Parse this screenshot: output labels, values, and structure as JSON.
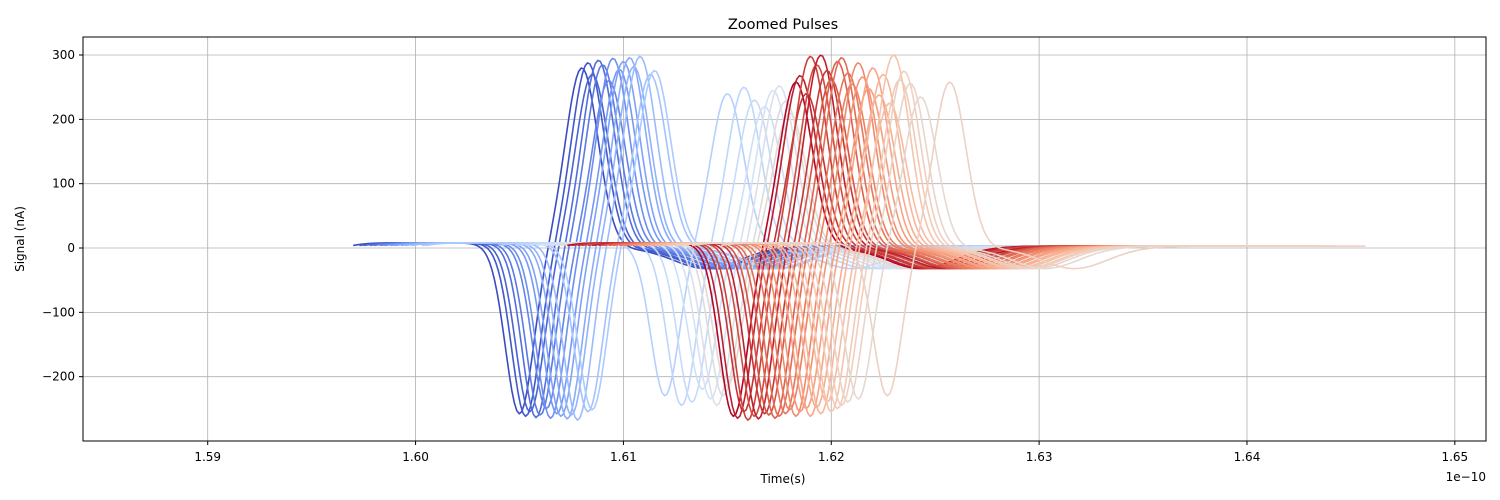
{
  "chart_data": {
    "type": "line",
    "title": "Zoomed Pulses",
    "xlabel": "Time(s)",
    "ylabel": "Signal (nA)",
    "x_offset_label": "1e−10",
    "xlim": [
      1.584,
      1.6515
    ],
    "ylim": [
      -300,
      328
    ],
    "grid": true,
    "colormap": "coolwarm",
    "x_ticks": [
      1.59,
      1.6,
      1.61,
      1.62,
      1.63,
      1.64,
      1.65
    ],
    "x_tick_labels": [
      "1.59",
      "1.60",
      "1.61",
      "1.62",
      "1.63",
      "1.64",
      "1.65"
    ],
    "y_ticks": [
      300,
      200,
      100,
      0,
      -100,
      -200
    ],
    "y_tick_labels": [
      "300",
      "200",
      "100",
      "0",
      "−100",
      "−200"
    ],
    "pulse_shape": {
      "description": "bipolar pulse: negative lobe, steep rise, positive lobe, small undershoot",
      "t_min_after_start": 0.0,
      "t_neg_peak": 0.0075,
      "t_pos_peak": 0.0115,
      "t_undershoot": 0.018,
      "t_end": 0.0255
    },
    "series": [
      {
        "t0": 1.597,
        "t_zero": 1.6065,
        "t_end": 1.628,
        "peak": 280,
        "trough": -258,
        "color": "#3b4cc0"
      },
      {
        "t0": 1.5973,
        "t_zero": 1.6068,
        "t_end": 1.6283,
        "peak": 288,
        "trough": -262,
        "color": "#4257c9"
      },
      {
        "t0": 1.5975,
        "t_zero": 1.607,
        "t_end": 1.6285,
        "peak": 270,
        "trough": -255,
        "color": "#4a63d3"
      },
      {
        "t0": 1.5978,
        "t_zero": 1.6073,
        "t_end": 1.6288,
        "peak": 292,
        "trough": -264,
        "color": "#536edb"
      },
      {
        "t0": 1.598,
        "t_zero": 1.6075,
        "t_end": 1.629,
        "peak": 285,
        "trough": -260,
        "color": "#5b7ae2"
      },
      {
        "t0": 1.5983,
        "t_zero": 1.6078,
        "t_end": 1.6293,
        "peak": 260,
        "trough": -250,
        "color": "#6485e8"
      },
      {
        "t0": 1.5985,
        "t_zero": 1.608,
        "t_end": 1.6295,
        "peak": 295,
        "trough": -265,
        "color": "#6c8ff1"
      },
      {
        "t0": 1.5988,
        "t_zero": 1.6083,
        "t_end": 1.6298,
        "peak": 278,
        "trough": -258,
        "color": "#7599f4"
      },
      {
        "t0": 1.599,
        "t_zero": 1.6085,
        "t_end": 1.63,
        "peak": 290,
        "trough": -262,
        "color": "#7ea3f7"
      },
      {
        "t0": 1.5993,
        "t_zero": 1.6088,
        "t_end": 1.6303,
        "peak": 296,
        "trough": -266,
        "color": "#88abfa"
      },
      {
        "t0": 1.5995,
        "t_zero": 1.609,
        "t_end": 1.6305,
        "peak": 282,
        "trough": -260,
        "color": "#91b3fc"
      },
      {
        "t0": 1.5998,
        "t_zero": 1.6093,
        "t_end": 1.6308,
        "peak": 298,
        "trough": -268,
        "color": "#9abbfd"
      },
      {
        "t0": 1.6003,
        "t_zero": 1.6098,
        "t_end": 1.6313,
        "peak": 270,
        "trough": -255,
        "color": "#a3c2fe"
      },
      {
        "t0": 1.6005,
        "t_zero": 1.61,
        "t_end": 1.6315,
        "peak": 276,
        "trough": -252,
        "color": "#accaff"
      },
      {
        "t0": 1.604,
        "t_zero": 1.6135,
        "t_end": 1.635,
        "peak": 240,
        "trough": -230,
        "color": "#b5d0ff"
      },
      {
        "t0": 1.6048,
        "t_zero": 1.6143,
        "t_end": 1.6358,
        "peak": 250,
        "trough": -245,
        "color": "#bed6fd"
      },
      {
        "t0": 1.6053,
        "t_zero": 1.6148,
        "t_end": 1.6363,
        "peak": 230,
        "trough": -240,
        "color": "#c6dbfb"
      },
      {
        "t0": 1.6058,
        "t_zero": 1.6153,
        "t_end": 1.6368,
        "peak": 220,
        "trough": -220,
        "color": "#cedff8"
      },
      {
        "t0": 1.6062,
        "t_zero": 1.6157,
        "t_end": 1.6372,
        "peak": 245,
        "trough": -235,
        "color": "#d5e2f4"
      },
      {
        "t0": 1.6065,
        "t_zero": 1.616,
        "t_end": 1.6375,
        "peak": 252,
        "trough": -245,
        "color": "#dbe0e8"
      },
      {
        "t0": 1.6068,
        "t_zero": 1.6163,
        "t_end": 1.6378,
        "peak": 228,
        "trough": -230,
        "color": "#dcdcdc"
      },
      {
        "t0": 1.607,
        "t_zero": 1.6165,
        "t_end": 1.638,
        "peak": 210,
        "trough": -215,
        "color": "#e2d9d4"
      },
      {
        "t0": 1.6073,
        "t_zero": 1.6168,
        "t_end": 1.6383,
        "peak": 258,
        "trough": -262,
        "color": "#b40426"
      },
      {
        "t0": 1.6075,
        "t_zero": 1.617,
        "t_end": 1.6385,
        "peak": 268,
        "trough": -265,
        "color": "#be1e2d"
      },
      {
        "t0": 1.6078,
        "t_zero": 1.6173,
        "t_end": 1.6388,
        "peak": 240,
        "trough": -255,
        "color": "#c53334"
      },
      {
        "t0": 1.608,
        "t_zero": 1.6175,
        "t_end": 1.639,
        "peak": 298,
        "trough": -268,
        "color": "#cc403a"
      },
      {
        "t0": 1.6083,
        "t_zero": 1.6178,
        "t_end": 1.6393,
        "peak": 285,
        "trough": -262,
        "color": "#d24b40"
      },
      {
        "t0": 1.6085,
        "t_zero": 1.618,
        "t_end": 1.6395,
        "peak": 300,
        "trough": -266,
        "color": "#bd1f2d"
      },
      {
        "t0": 1.6088,
        "t_zero": 1.6183,
        "t_end": 1.6398,
        "peak": 276,
        "trough": -258,
        "color": "#c83837"
      },
      {
        "t0": 1.609,
        "t_zero": 1.6185,
        "t_end": 1.64,
        "peak": 262,
        "trough": -260,
        "color": "#d75445"
      },
      {
        "t0": 1.6093,
        "t_zero": 1.6188,
        "t_end": 1.6403,
        "peak": 290,
        "trough": -265,
        "color": "#de614d"
      },
      {
        "t0": 1.6095,
        "t_zero": 1.619,
        "t_end": 1.6405,
        "peak": 296,
        "trough": -262,
        "color": "#e36c55"
      },
      {
        "t0": 1.6098,
        "t_zero": 1.6193,
        "t_end": 1.6408,
        "peak": 272,
        "trough": -258,
        "color": "#e8765c"
      },
      {
        "t0": 1.61,
        "t_zero": 1.6195,
        "t_end": 1.641,
        "peak": 255,
        "trough": -252,
        "color": "#ec8064"
      },
      {
        "t0": 1.6103,
        "t_zero": 1.6198,
        "t_end": 1.6413,
        "peak": 288,
        "trough": -262,
        "color": "#f08a6c"
      },
      {
        "t0": 1.6105,
        "t_zero": 1.62,
        "t_end": 1.6415,
        "peak": 266,
        "trough": -255,
        "color": "#f39475"
      },
      {
        "t0": 1.6108,
        "t_zero": 1.6203,
        "t_end": 1.6418,
        "peak": 248,
        "trough": -250,
        "color": "#f59d7e"
      },
      {
        "t0": 1.611,
        "t_zero": 1.6205,
        "t_end": 1.642,
        "peak": 280,
        "trough": -262,
        "color": "#f6a586"
      },
      {
        "t0": 1.6113,
        "t_zero": 1.6208,
        "t_end": 1.6423,
        "peak": 238,
        "trough": -248,
        "color": "#f7ad90"
      },
      {
        "t0": 1.6115,
        "t_zero": 1.621,
        "t_end": 1.6425,
        "peak": 270,
        "trough": -258,
        "color": "#f7b599"
      },
      {
        "t0": 1.6118,
        "t_zero": 1.6213,
        "t_end": 1.6428,
        "peak": 225,
        "trough": -240,
        "color": "#f6bda2"
      },
      {
        "t0": 1.612,
        "t_zero": 1.6215,
        "t_end": 1.643,
        "peak": 300,
        "trough": -255,
        "color": "#f5c4ac"
      },
      {
        "t0": 1.6123,
        "t_zero": 1.6218,
        "t_end": 1.6433,
        "peak": 262,
        "trough": -250,
        "color": "#f2cab5"
      },
      {
        "t0": 1.6125,
        "t_zero": 1.622,
        "t_end": 1.6435,
        "peak": 275,
        "trough": -245,
        "color": "#efcfbf"
      },
      {
        "t0": 1.6128,
        "t_zero": 1.6223,
        "t_end": 1.6438,
        "peak": 256,
        "trough": -240,
        "color": "#ead4c8"
      },
      {
        "t0": 1.6133,
        "t_zero": 1.6228,
        "t_end": 1.6443,
        "peak": 235,
        "trough": -235,
        "color": "#e5d8d1"
      },
      {
        "t0": 1.6147,
        "t_zero": 1.6242,
        "t_end": 1.6457,
        "peak": 258,
        "trough": -230,
        "color": "#edd1c2"
      }
    ]
  }
}
